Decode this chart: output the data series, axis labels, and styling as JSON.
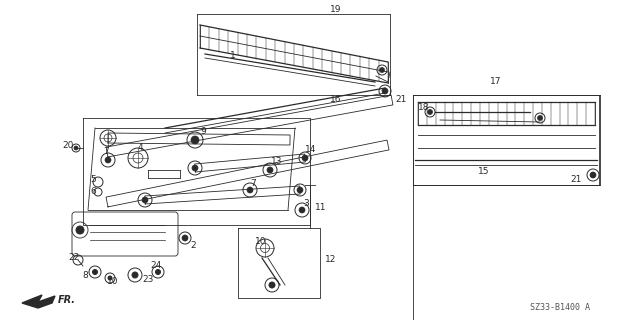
{
  "diagram_code": "SZ33-B1400 A",
  "bg_color": "#ffffff",
  "line_color": "#2a2a2a",
  "fig_width": 6.21,
  "fig_height": 3.2,
  "dpi": 100
}
